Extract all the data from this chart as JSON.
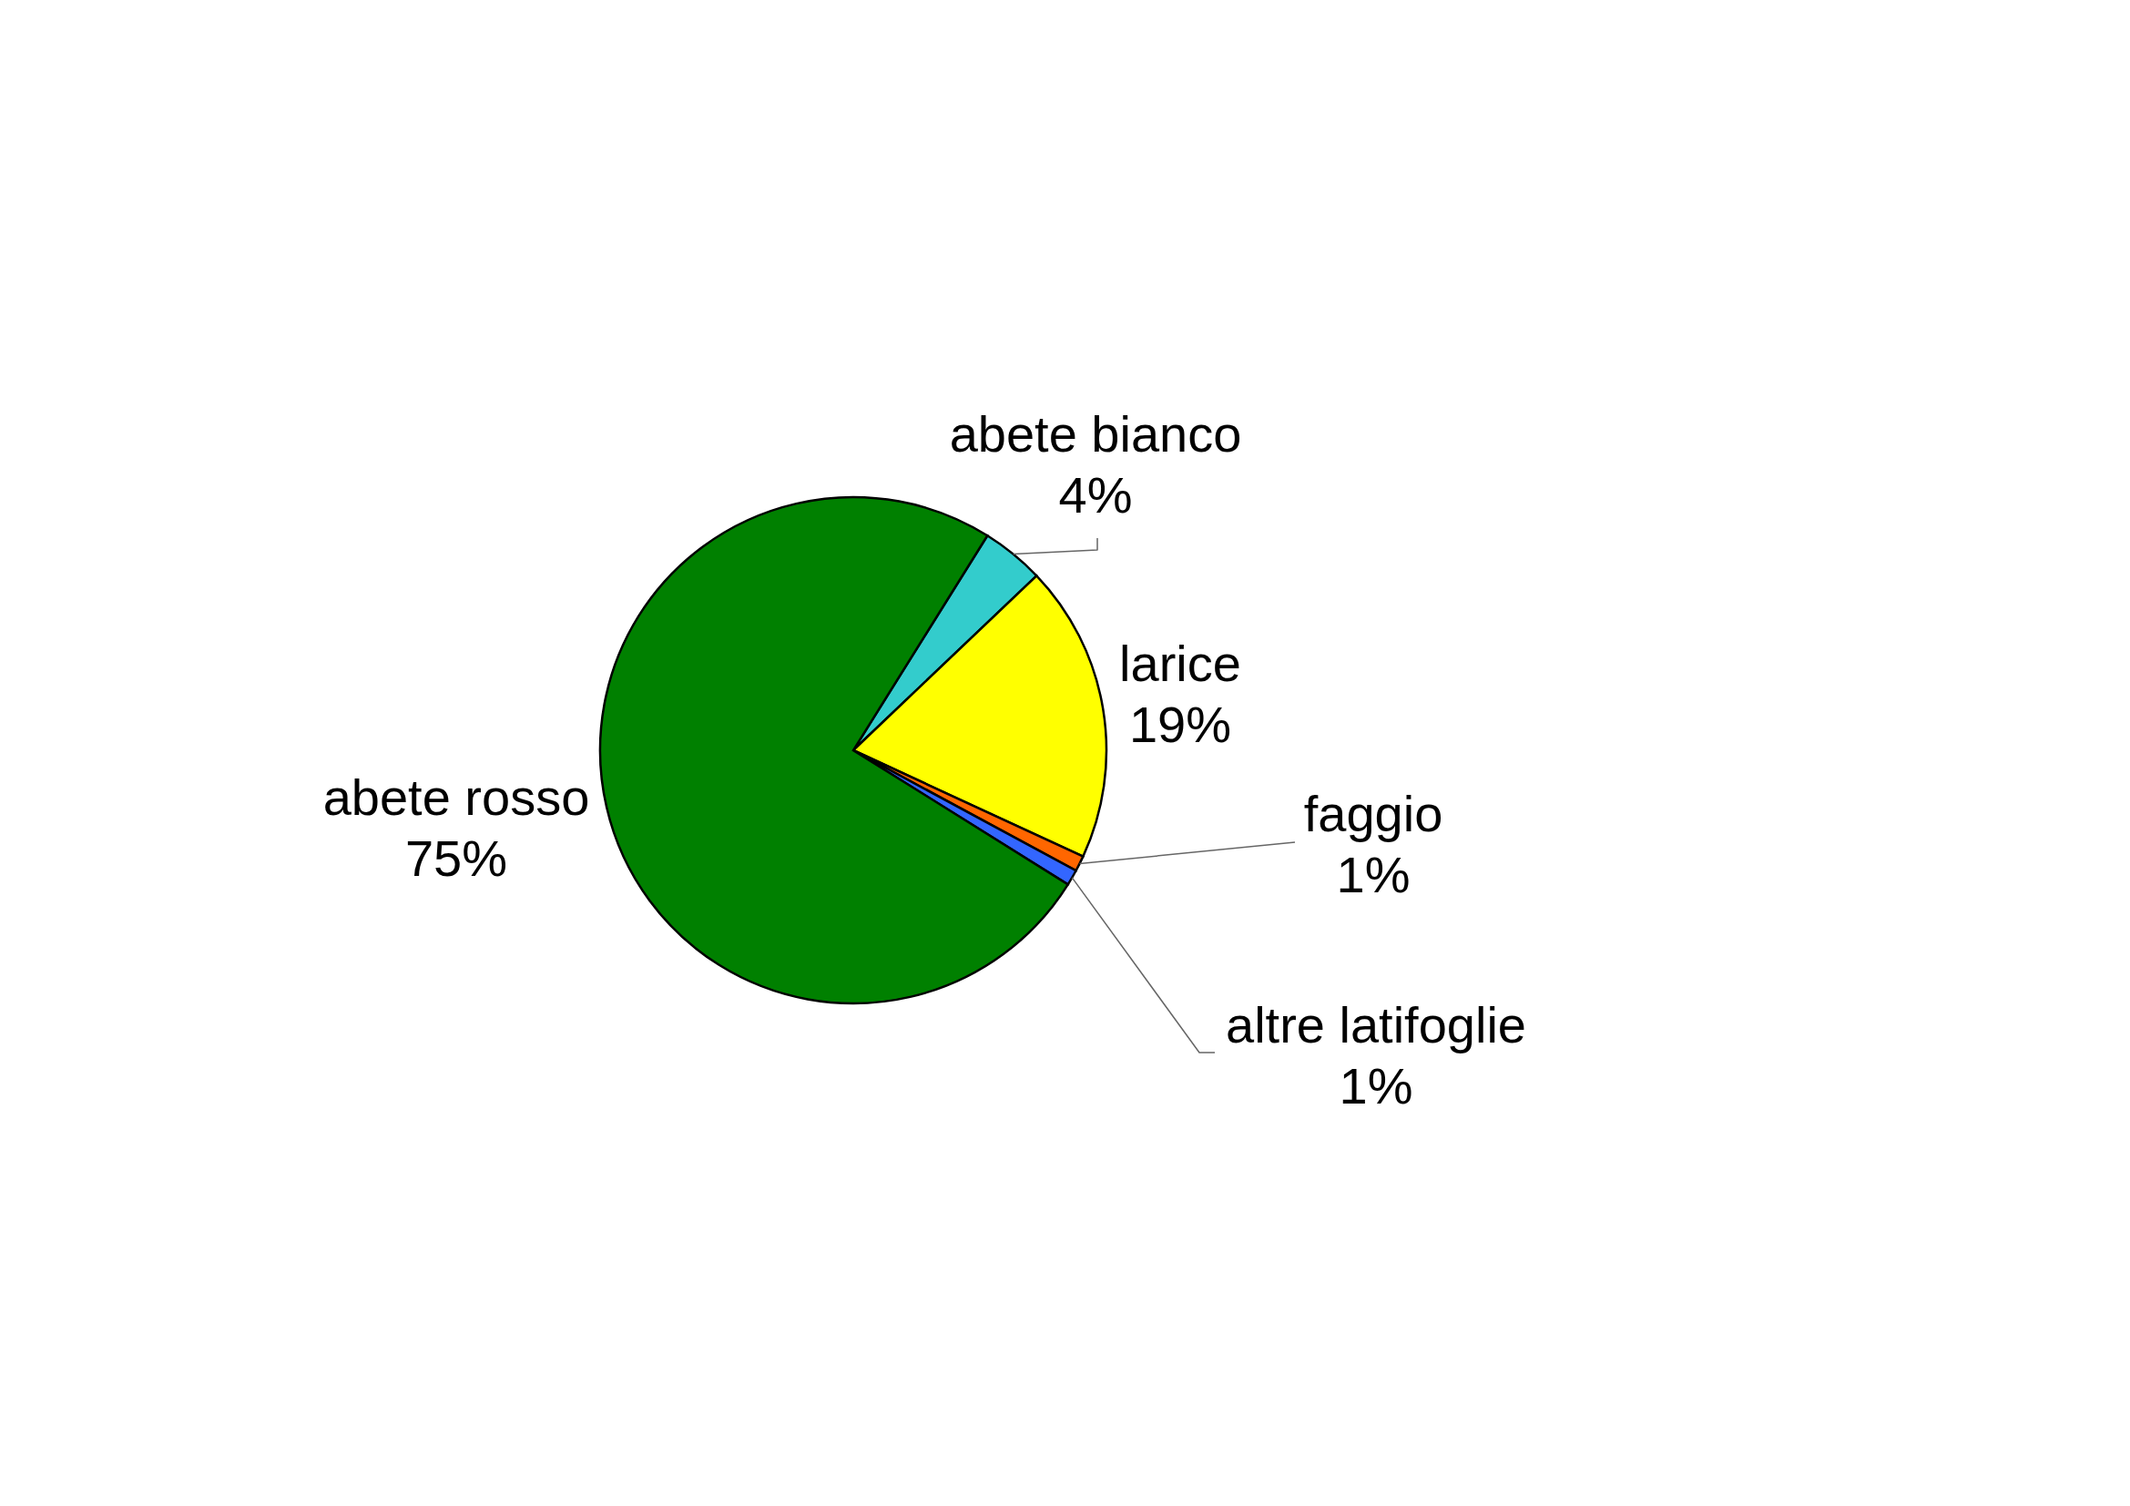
{
  "chart_data": {
    "type": "pie",
    "categories": [
      "abete bianco",
      "larice",
      "faggio",
      "altre latifoglie",
      "abete rosso"
    ],
    "values": [
      4,
      19,
      1,
      1,
      75
    ],
    "colors": [
      "#33cccc",
      "#ffff00",
      "#ff6600",
      "#3366ff",
      "#008000"
    ],
    "value_labels": [
      "4%",
      "19%",
      "1%",
      "1%",
      "75%"
    ]
  }
}
